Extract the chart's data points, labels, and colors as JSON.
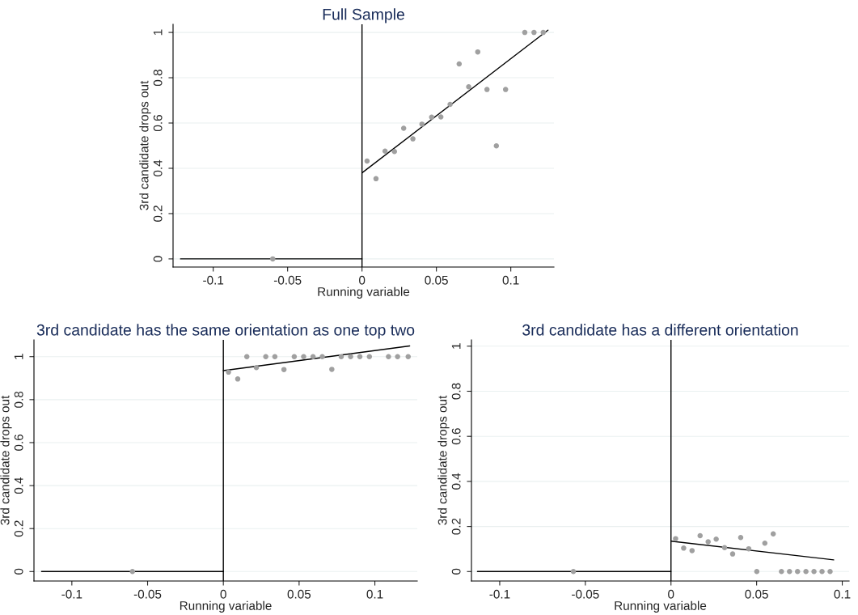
{
  "chart_data": [
    {
      "type": "scatter",
      "title": "Full Sample",
      "xlabel": "Running variable",
      "ylabel": "3rd candidate drops out",
      "xlim": [
        -0.127,
        0.129
      ],
      "ylim": [
        -0.036,
        1.036
      ],
      "xticks": [
        -0.1,
        -0.05,
        0,
        0.05,
        0.1
      ],
      "yticks": [
        0,
        0.2,
        0.4,
        0.6,
        0.8,
        1
      ],
      "grid": "y",
      "ref_lines": [
        {
          "axis": "x",
          "value": 0,
          "color": "#000000"
        }
      ],
      "series": [
        {
          "marker": "circle",
          "color": "#a0a0a0",
          "x": [
            -0.06,
            0.0034,
            0.0094,
            0.0155,
            0.0218,
            0.028,
            0.0342,
            0.0403,
            0.0468,
            0.053,
            0.0592,
            0.0653,
            0.0717,
            0.0778,
            0.084,
            0.0903,
            0.0965,
            0.1094,
            0.1156,
            0.1218
          ],
          "values": [
            0,
            0.432,
            0.354,
            0.476,
            0.474,
            0.577,
            0.53,
            0.595,
            0.626,
            0.627,
            0.682,
            0.861,
            0.76,
            0.914,
            0.748,
            0.499,
            0.748,
            1,
            1,
            1
          ]
        },
        {
          "type": "line",
          "color": "#000000",
          "x": [
            -0.122,
            0
          ],
          "values": [
            0,
            0
          ]
        },
        {
          "type": "line",
          "color": "#000000",
          "x": [
            0,
            0.125
          ],
          "values": [
            0.38,
            1.01
          ]
        }
      ]
    },
    {
      "type": "scatter",
      "title": "3rd candidate has the same orientation as one top two",
      "xlabel": "Running variable",
      "ylabel": "3rd candidate drops out",
      "xlim": [
        -0.125,
        0.128
      ],
      "ylim": [
        -0.044,
        1.078
      ],
      "xticks": [
        -0.1,
        -0.05,
        0,
        0.05,
        0.1
      ],
      "yticks": [
        0,
        0.2,
        0.4,
        0.6,
        0.8,
        1
      ],
      "grid": "y",
      "ref_lines": [
        {
          "axis": "x",
          "value": 0,
          "color": "#000000"
        }
      ],
      "series": [
        {
          "marker": "circle",
          "color": "#a0a0a0",
          "x": [
            -0.06,
            0.0034,
            0.0095,
            0.0155,
            0.0218,
            0.028,
            0.034,
            0.04,
            0.0468,
            0.053,
            0.0592,
            0.0653,
            0.0716,
            0.0778,
            0.084,
            0.0901,
            0.0964,
            0.109,
            0.115,
            0.122
          ],
          "values": [
            0,
            0.928,
            0.896,
            1,
            0.949,
            1,
            1,
            0.94,
            1,
            1,
            1,
            1,
            0.941,
            1,
            1,
            1,
            1,
            1,
            1,
            1
          ]
        },
        {
          "type": "line",
          "color": "#000000",
          "x": [
            -0.12,
            0
          ],
          "values": [
            0,
            0
          ]
        },
        {
          "type": "line",
          "color": "#000000",
          "x": [
            0,
            0.123
          ],
          "values": [
            0.935,
            1.05
          ]
        }
      ]
    },
    {
      "type": "scatter",
      "title": "3rd candidate has a different orientation",
      "xlabel": "Running variable",
      "ylabel": "3rd candidate drops out",
      "xlim": [
        -0.1165,
        0.104
      ],
      "ylim": [
        -0.042,
        1.028
      ],
      "xticks": [
        -0.1,
        -0.05,
        0,
        0.05,
        0.1
      ],
      "yticks": [
        0,
        0.2,
        0.4,
        0.6,
        0.8,
        1
      ],
      "grid": "y",
      "ref_lines": [
        {
          "axis": "x",
          "value": 0,
          "color": "#000000"
        }
      ],
      "series": [
        {
          "marker": "circle",
          "color": "#a0a0a0",
          "x": [
            -0.057,
            0.0027,
            0.0074,
            0.0123,
            0.017,
            0.0217,
            0.0264,
            0.0313,
            0.036,
            0.0407,
            0.0454,
            0.0501,
            0.0548,
            0.0597,
            0.0645,
            0.0692,
            0.0739,
            0.0788,
            0.0835,
            0.0882,
            0.0929
          ],
          "values": [
            0,
            0.146,
            0.104,
            0.093,
            0.159,
            0.132,
            0.144,
            0.106,
            0.078,
            0.151,
            0.101,
            0,
            0.126,
            0.167,
            0,
            0,
            0,
            0,
            0,
            0,
            0
          ]
        },
        {
          "type": "line",
          "color": "#000000",
          "x": [
            -0.113,
            0
          ],
          "values": [
            0,
            0
          ]
        },
        {
          "type": "line",
          "color": "#000000",
          "x": [
            0,
            0.095
          ],
          "values": [
            0.135,
            0.052
          ]
        }
      ]
    }
  ]
}
